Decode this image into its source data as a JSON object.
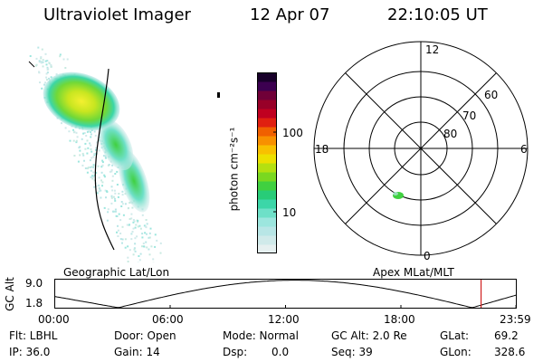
{
  "header": {
    "instrument": "Ultraviolet Imager",
    "date": "12 Apr 07",
    "time": "22:10:05 UT"
  },
  "colorbar": {
    "label": "photon cm⁻²s⁻¹",
    "ticks": [
      {
        "label": "100",
        "value": 100
      },
      {
        "label": "10",
        "value": 10
      }
    ],
    "colors": [
      "#e6f0f0",
      "#d0eaea",
      "#b8e6e6",
      "#9ce6de",
      "#6ee0c8",
      "#3cd6a8",
      "#28cc78",
      "#40d040",
      "#7ad820",
      "#b4e010",
      "#ece000",
      "#f8c000",
      "#f89000",
      "#f06000",
      "#e02010",
      "#c00020",
      "#980028",
      "#700038",
      "#3c0050",
      "#18002a"
    ]
  },
  "geographic": {
    "label": "Geographic Lat/Lon"
  },
  "apex": {
    "label": "Apex MLat/MLT",
    "mlt_labels": [
      {
        "label": "12",
        "mlt": 12
      },
      {
        "label": "18",
        "mlt": 18
      },
      {
        "label": "6",
        "mlt": 6
      },
      {
        "label": "0",
        "mlt": 0
      }
    ],
    "lat_labels": [
      {
        "label": "60",
        "lat": 60
      },
      {
        "label": "70",
        "lat": 70
      },
      {
        "label": "80",
        "lat": 80
      }
    ]
  },
  "altitude_plot": {
    "ylabel": "GC Alt",
    "yticks": [
      {
        "label": "9.0",
        "value": 9.0
      },
      {
        "label": "1.8",
        "value": 1.8
      }
    ],
    "xticks": [
      {
        "label": "00:00",
        "hour": 0
      },
      {
        "label": "06:00",
        "hour": 6
      },
      {
        "label": "12:00",
        "hour": 12
      },
      {
        "label": "18:00",
        "hour": 18
      },
      {
        "label": "23:59",
        "hour": 23.983
      }
    ],
    "current_hour": 22.168,
    "marker_color": "#d02020"
  },
  "info": {
    "flt": "Flt: LBHL",
    "ip": "IP: 36.0",
    "door": "Door: Open",
    "gain": "Gain: 14",
    "mode": "Mode: Normal",
    "dsp_label": "Dsp:",
    "dsp_value": "0.0",
    "gc_alt": "GC Alt: 2.0 Re",
    "seq": "Seq: 39",
    "glat_label": "GLat:",
    "glat_value": "69.2",
    "glon_label": "GLon:",
    "glon_value": "328.6"
  }
}
